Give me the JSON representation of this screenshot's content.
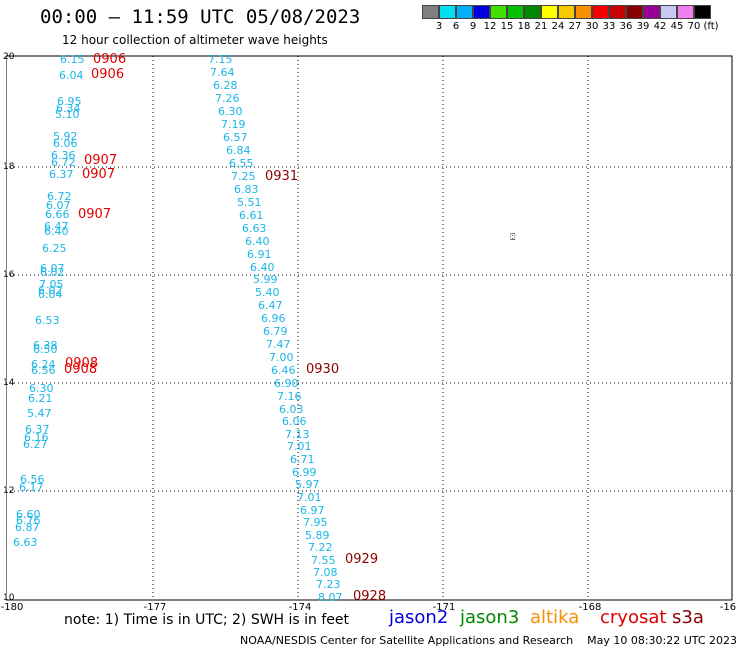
{
  "header": {
    "title": "00:00 – 11:59 UTC 05/08/2023",
    "subtitle": "12 hour collection of altimeter wave heights"
  },
  "color_scale": {
    "colors": [
      "#808080",
      "#00e0f0",
      "#00b0f8",
      "#0000e0",
      "#40e000",
      "#00c000",
      "#008800",
      "#ffff00",
      "#f8c800",
      "#f89000",
      "#f80000",
      "#c80000",
      "#880000",
      "#980098",
      "#c8c8f0",
      "#f080f0",
      "#000000"
    ],
    "labels": [
      "3",
      "6",
      "9",
      "12",
      "15",
      "18",
      "21",
      "24",
      "27",
      "30",
      "33",
      "36",
      "39",
      "42",
      "45",
      "70",
      "(ft)"
    ]
  },
  "axes": {
    "x_ticks": [
      "-180",
      "-177",
      "-174",
      "-171",
      "-168",
      "-16"
    ],
    "y_ticks": [
      "20",
      "18",
      "16",
      "14",
      "12",
      "10"
    ]
  },
  "footer": {
    "note": "note:  1) Time is in UTC; 2) SWH is in feet",
    "credit": "NOAA/NESDIS Center for Satellite Applications and Research    May 10 08:30:22 UTC 2023"
  },
  "legend": [
    {
      "name": "jason2",
      "color": "#0000e0"
    },
    {
      "name": "jason3",
      "color": "#008800"
    },
    {
      "name": "altika",
      "color": "#f89000"
    },
    {
      "name": "cryosat",
      "color": "#e00000"
    },
    {
      "name": "s3a",
      "color": "#8c0000"
    }
  ],
  "map_symbol": "⍠",
  "tracks": {
    "track_a": {
      "times": [
        "0906",
        "0906",
        "0907",
        "0907",
        "0907",
        "0908",
        "0908"
      ],
      "wave_heights": [
        "6.15",
        "6.04",
        "6.95",
        "6.34",
        "5.10",
        "5.92",
        "6.06",
        "6.36",
        "6.72",
        "6.37",
        "6.72",
        "6.07",
        "6.66",
        "6.47",
        "6.40",
        "6.25",
        "6.07",
        "6.02",
        "7.05",
        "6.02",
        "6.04",
        "6.53",
        "6.38",
        "6.50",
        "6.24",
        "6.56"
      ]
    },
    "track_b": {
      "wave_heights": [
        "6.30",
        "6.21",
        "5.47",
        "6.37",
        "6.16",
        "6.27",
        "6.56",
        "6.17",
        "6.60",
        "6.76",
        "6.87",
        "6.63"
      ]
    },
    "track_c": {
      "times": [
        "0931",
        "0930",
        "0929",
        "0928"
      ],
      "wave_heights": [
        "7.15",
        "7.64",
        "6.28",
        "7.26",
        "6.30",
        "7.19",
        "6.57",
        "6.84",
        "6.55",
        "7.25",
        "6.83",
        "5.51",
        "6.61",
        "6.63",
        "6.40",
        "6.91",
        "6.40",
        "5.99",
        "5.40",
        "6.47",
        "6.96",
        "6.79",
        "7.47",
        "7.00",
        "6.46",
        "6.90",
        "7.16",
        "6.03",
        "6.06",
        "7.13",
        "7.01",
        "6.71",
        "6.99",
        "5.97",
        "7.01",
        "6.97",
        "7.95",
        "5.89",
        "7.22",
        "7.55",
        "7.08",
        "7.23",
        "8.07"
      ]
    }
  }
}
